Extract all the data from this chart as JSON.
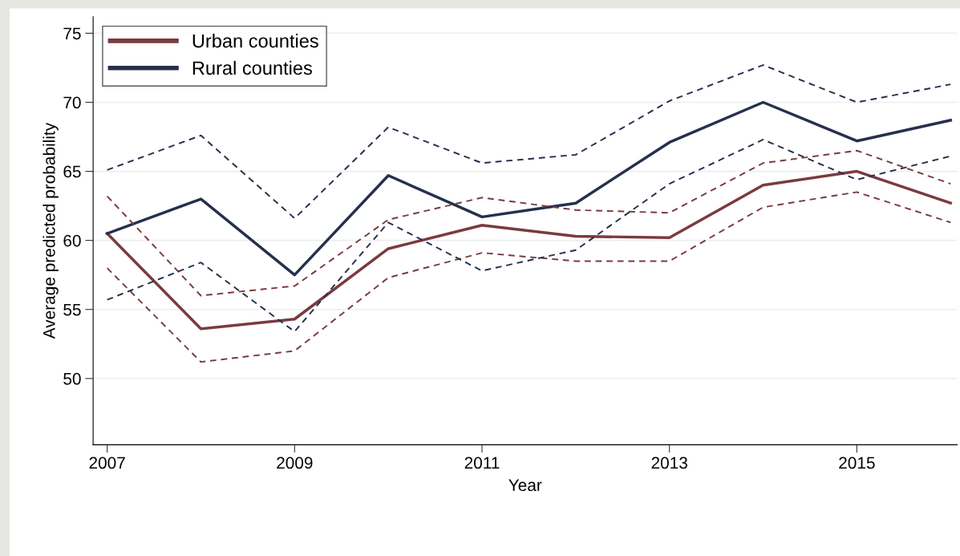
{
  "chart_data": {
    "type": "line",
    "xlabel": "Year",
    "ylabel": "Average predicted probability",
    "x": [
      2007,
      2008,
      2009,
      2010,
      2011,
      2012,
      2013,
      2014,
      2015,
      2016
    ],
    "series": [
      {
        "name": "Urban counties",
        "color": "#7a3b3f",
        "values": [
          60.5,
          53.6,
          54.3,
          59.4,
          61.1,
          60.3,
          60.2,
          64.0,
          65.0,
          62.7
        ]
      },
      {
        "name": "Rural counties",
        "color": "#26304d",
        "values": [
          60.5,
          63.0,
          57.5,
          64.7,
          61.7,
          62.7,
          67.1,
          70.0,
          67.2,
          68.7
        ]
      },
      {
        "color": "#7a3b3f",
        "line_style": "dashed",
        "values": [
          63.2,
          56.0,
          56.7,
          61.5,
          63.1,
          62.2,
          62.0,
          65.6,
          66.5,
          64.1
        ]
      },
      {
        "color": "#7a3b3f",
        "line_style": "dashed",
        "values": [
          58.0,
          51.2,
          52.0,
          57.3,
          59.1,
          58.5,
          58.5,
          62.4,
          63.5,
          61.3
        ]
      },
      {
        "color": "#26304d",
        "line_style": "dashed",
        "values": [
          65.1,
          67.6,
          61.6,
          68.2,
          65.6,
          66.2,
          70.1,
          72.7,
          70.0,
          71.3
        ]
      },
      {
        "color": "#26304d",
        "line_style": "dashed",
        "values": [
          55.7,
          58.4,
          53.4,
          61.3,
          57.8,
          59.3,
          64.1,
          67.3,
          64.4,
          66.1
        ]
      }
    ],
    "xlim": [
      2006.85,
      2016.07
    ],
    "xticks": [
      2007,
      2009,
      2011,
      2013,
      2015
    ],
    "ylim": [
      45.2,
      76.2
    ],
    "yticks": [
      50,
      55,
      60,
      65,
      70,
      75
    ],
    "grid": "y",
    "legend": "top left",
    "line_style": "solid",
    "marker": "none"
  }
}
